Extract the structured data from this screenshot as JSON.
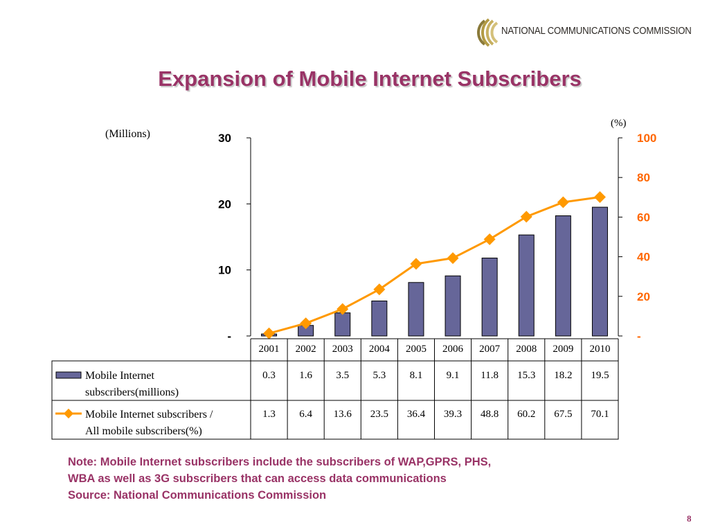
{
  "header": {
    "org_name": "NATIONAL COMMUNICATIONS COMMISSION",
    "logo_colors": [
      "#8a7a3a",
      "#b39b45",
      "#d4c07a"
    ]
  },
  "title": "Expansion of Mobile Internet Subscribers",
  "chart_data": {
    "type": "bar",
    "categories": [
      "2001",
      "2002",
      "2003",
      "2004",
      "2005",
      "2006",
      "2007",
      "2008",
      "2009",
      "2010"
    ],
    "series": [
      {
        "name": "Mobile Internet subscribers(millions)",
        "label_lines": [
          "Mobile Internet",
          "subscribers(millions)"
        ],
        "type": "bar",
        "axis": "left",
        "color": "#666699",
        "values": [
          0.3,
          1.6,
          3.5,
          5.3,
          8.1,
          9.1,
          11.8,
          15.3,
          18.2,
          19.5
        ],
        "cells": [
          "0.3",
          "1.6",
          "3.5",
          "5.3",
          "8.1",
          "9.1",
          "11.8",
          "15.3",
          "18.2",
          "19.5"
        ]
      },
      {
        "name": "Mobile Internet subscribers / All mobile subscribers(%)",
        "label_lines": [
          "Mobile Internet subscribers /",
          "All mobile subscribers(%)"
        ],
        "type": "line",
        "axis": "right",
        "color": "#ff9900",
        "values": [
          1.3,
          6.4,
          13.6,
          23.5,
          36.4,
          39.3,
          48.8,
          60.2,
          67.5,
          70.1
        ],
        "cells": [
          "1.3",
          "6.4",
          "13.6",
          "23.5",
          "36.4",
          "39.3",
          "48.8",
          "60.2",
          "67.5",
          "70.1"
        ]
      }
    ],
    "y_left": {
      "label": "(Millions)",
      "ylim": [
        0,
        30
      ],
      "ticks": [
        0,
        10,
        20,
        30
      ],
      "tick_labels": [
        "-",
        "10",
        "20",
        "30"
      ]
    },
    "y_right": {
      "label": "(%)",
      "ylim": [
        0,
        100
      ],
      "ticks": [
        0,
        20,
        40,
        60,
        80,
        100
      ],
      "tick_labels": [
        "-",
        "20",
        "40",
        "60",
        "80",
        "100"
      ],
      "color": "#ff6600"
    },
    "grid": false,
    "data_table": true
  },
  "note_lines": [
    "Note: Mobile Internet subscribers include the subscribers of WAP,GPRS, PHS,",
    "WBA as well as 3G subscribers that can access data communications",
    "Source: National Communications Commission"
  ],
  "page_number": "8"
}
